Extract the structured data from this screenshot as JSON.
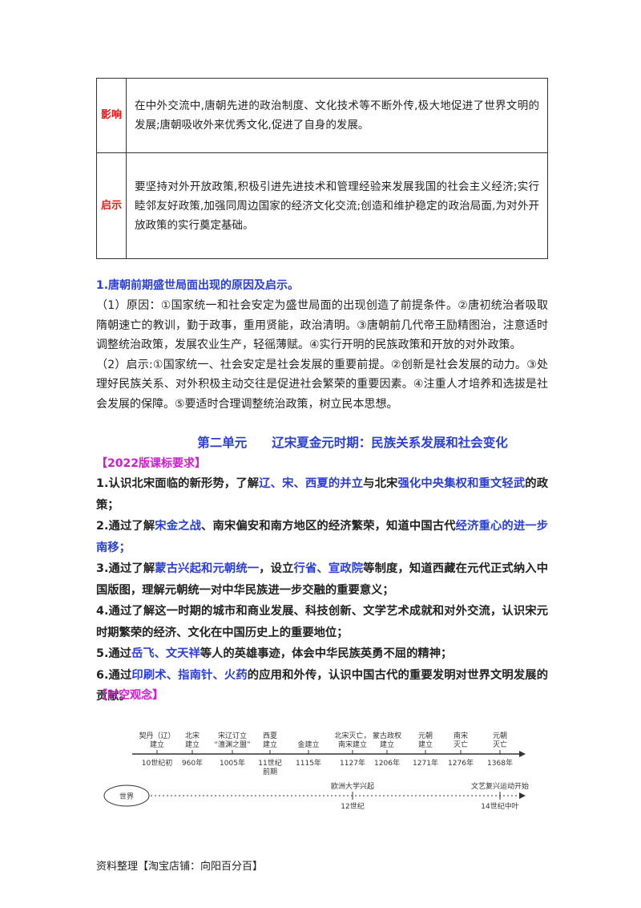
{
  "table": {
    "rows": [
      {
        "label": "影响",
        "text": "在中外交流中,唐朝先进的政治制度、文化技术等不断外传,极大地促进了世界文明的发展;唐朝吸收外来优秀文化,促进了自身的发展。"
      },
      {
        "label": "启示",
        "text": "要坚持对外开放政策,积极引进先进技术和管理经验来发展我国的社会主义经济;实行睦邻友好政策,加强同周边国家的经济文化交流;创造和维护稳定的政治局面,为对外开放政策的实行奠定基础。"
      }
    ]
  },
  "section": {
    "heading": "1.唐朝前期盛世局面出现的原因及启示。",
    "paragraphs": [
      "（1）原因：①国家统一和社会安定为盛世局面的出现创造了前提条件。②唐初统治者吸取隋朝速亡的教训，勤于政事，重用贤能，政治清明。③唐朝前几代帝王励精图治，注意适时调整统治政策，发展农业生产，轻徭薄赋。④实行开明的民族政策和开放的对外政策。",
      "（2）启示:①国家统一、社会安定是社会发展的重要前提。②创新是社会发展的动力。③处理好民族关系、对外积极主动交往是促进社会繁荣的重要因素。④注重人才培养和选拔是社会发展的保障。⑤要适时合理调整统治政策，树立民本思想。"
    ]
  },
  "unit_title": "第二单元　　辽宋夏金元时期：民族关系发展和社会变化",
  "standards_heading": "【2022版课标要求】",
  "requirements": [
    [
      {
        "text": "1.认识北宋面临的新形势，了解"
      },
      {
        "text": "辽、宋、西夏的并立",
        "highlight": true
      },
      {
        "text": "与北宋"
      },
      {
        "text": "强化中央集权和重文轻武",
        "highlight": true
      },
      {
        "text": "的政策；"
      }
    ],
    [
      {
        "text": "2.通过了解"
      },
      {
        "text": "宋金之战",
        "highlight": true
      },
      {
        "text": "、南宋偏安和南方地区的经济繁荣，知道中国古代"
      },
      {
        "text": "经济重心的进一步南移；",
        "highlight": true
      }
    ],
    [
      {
        "text": "3.通过了解"
      },
      {
        "text": "蒙古兴起和元朝统一",
        "highlight": true
      },
      {
        "text": "，设立"
      },
      {
        "text": "行省、宣政院",
        "highlight": true
      },
      {
        "text": "等制度，知道西藏在元代正式纳入中国版图，理解元朝统一对中华民族进一步交融的重要意义；"
      }
    ],
    [
      {
        "text": "4.通过了解这一时期的城市和商业发展、科技创新、文学艺术成就和对外交流，认识宋元时期繁荣的经济、文化在中国历史上的重要地位；"
      }
    ],
    [
      {
        "text": "5.通过"
      },
      {
        "text": "岳飞、文天祥",
        "highlight": true
      },
      {
        "text": "等人的英雄事迹，体会中华民族英勇不屈的精神；"
      }
    ],
    [
      {
        "text": "6.通过"
      },
      {
        "text": "印刷术、指南针、火药",
        "highlight": true
      },
      {
        "text": "的应用和外传，认识中国古代的重要发明对世界文明发展的贡献。"
      }
    ]
  ],
  "timeline_heading": "【时空观念】",
  "timeline": {
    "events": [
      {
        "label": [
          "契丹（辽）",
          "建立"
        ],
        "date": [
          "10世纪初"
        ]
      },
      {
        "label": [
          "北宋",
          "建立"
        ],
        "date": [
          "960年"
        ]
      },
      {
        "label": [
          "宋辽订立",
          "“澶渊之盟”"
        ],
        "date": [
          "1005年"
        ]
      },
      {
        "label": [
          "西夏",
          "建立"
        ],
        "date": [
          "11世纪",
          "前期"
        ]
      },
      {
        "label": [
          "金建立"
        ],
        "date": [
          "1115年"
        ]
      },
      {
        "label": [
          "北宋灭亡，",
          "南宋建立"
        ],
        "date": [
          "1127年"
        ]
      },
      {
        "label": [
          "蒙古政权",
          "建立"
        ],
        "date": [
          "1206年"
        ]
      },
      {
        "label": [
          "元朝",
          "建立"
        ],
        "date": [
          "1271年"
        ]
      },
      {
        "label": [
          "南宋",
          "灭亡"
        ],
        "date": [
          "1276年"
        ]
      },
      {
        "label": [
          "元朝",
          "灭亡"
        ],
        "date": [
          "1368年"
        ]
      }
    ],
    "world_label": "世界",
    "world_events": [
      {
        "label": "欧洲大学兴起",
        "date": "12世纪"
      },
      {
        "label": "文艺复兴运动开始",
        "date": "14世纪中叶"
      }
    ]
  },
  "footer": "资料整理【淘宝店铺：向阳百分百】"
}
